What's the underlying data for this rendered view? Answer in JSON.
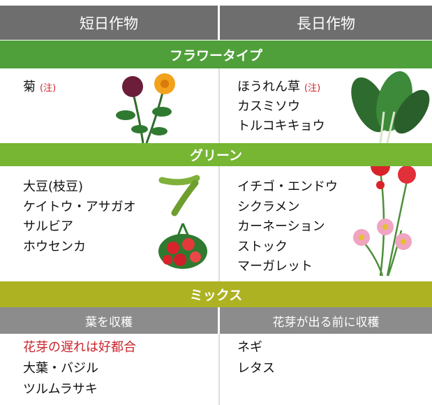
{
  "header": {
    "short_day": "短日作物",
    "long_day": "長日作物"
  },
  "sections": [
    {
      "title": "フラワータイプ",
      "short_day": {
        "items": [
          {
            "text": "菊",
            "note": "(注)"
          }
        ]
      },
      "long_day": {
        "items": [
          {
            "text": "ほうれん草",
            "note": "(注)"
          },
          {
            "text": "カスミソウ"
          },
          {
            "text": "トルコキキョウ"
          }
        ]
      }
    },
    {
      "title": "グリーン",
      "short_day": {
        "items": [
          {
            "text": "大豆(枝豆)"
          },
          {
            "text": "ケイトウ・アサガオ"
          },
          {
            "text": "サルビア"
          },
          {
            "text": "ホウセンカ"
          }
        ]
      },
      "long_day": {
        "items": [
          {
            "text": "イチゴ・エンドウ"
          },
          {
            "text": "シクラメン"
          },
          {
            "text": "カーネーション"
          },
          {
            "text": "ストック"
          },
          {
            "text": "マーガレット"
          }
        ]
      }
    },
    {
      "title": "ミックス",
      "short_day": {
        "subheader": "葉を収穫",
        "items": [
          {
            "text": "花芽の遅れは好都合",
            "highlight": true
          },
          {
            "text": "大葉・バジル"
          },
          {
            "text": "ツルムラサキ"
          }
        ]
      },
      "long_day": {
        "subheader": "花芽が出る前に収穫",
        "items": [
          {
            "text": "ネギ"
          },
          {
            "text": "レタス"
          }
        ]
      }
    }
  ]
}
